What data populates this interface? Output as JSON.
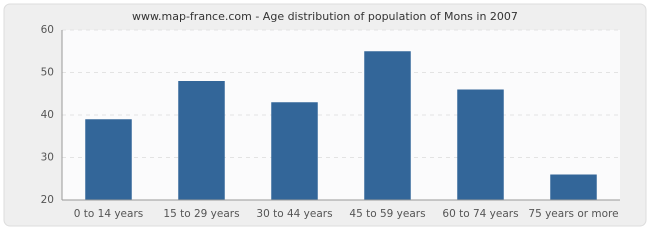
{
  "chart_data": {
    "type": "bar",
    "title": "www.map-france.com - Age distribution of population of Mons in 2007",
    "categories": [
      "0 to 14 years",
      "15 to 29 years",
      "30 to 44 years",
      "45 to 59 years",
      "60 to 74 years",
      "75 years or more"
    ],
    "values": [
      39,
      48,
      43,
      55,
      46,
      26
    ],
    "color": "#336699",
    "ylim": [
      20,
      60
    ],
    "yticks": [
      20,
      30,
      40,
      50,
      60
    ],
    "grid": true
  }
}
